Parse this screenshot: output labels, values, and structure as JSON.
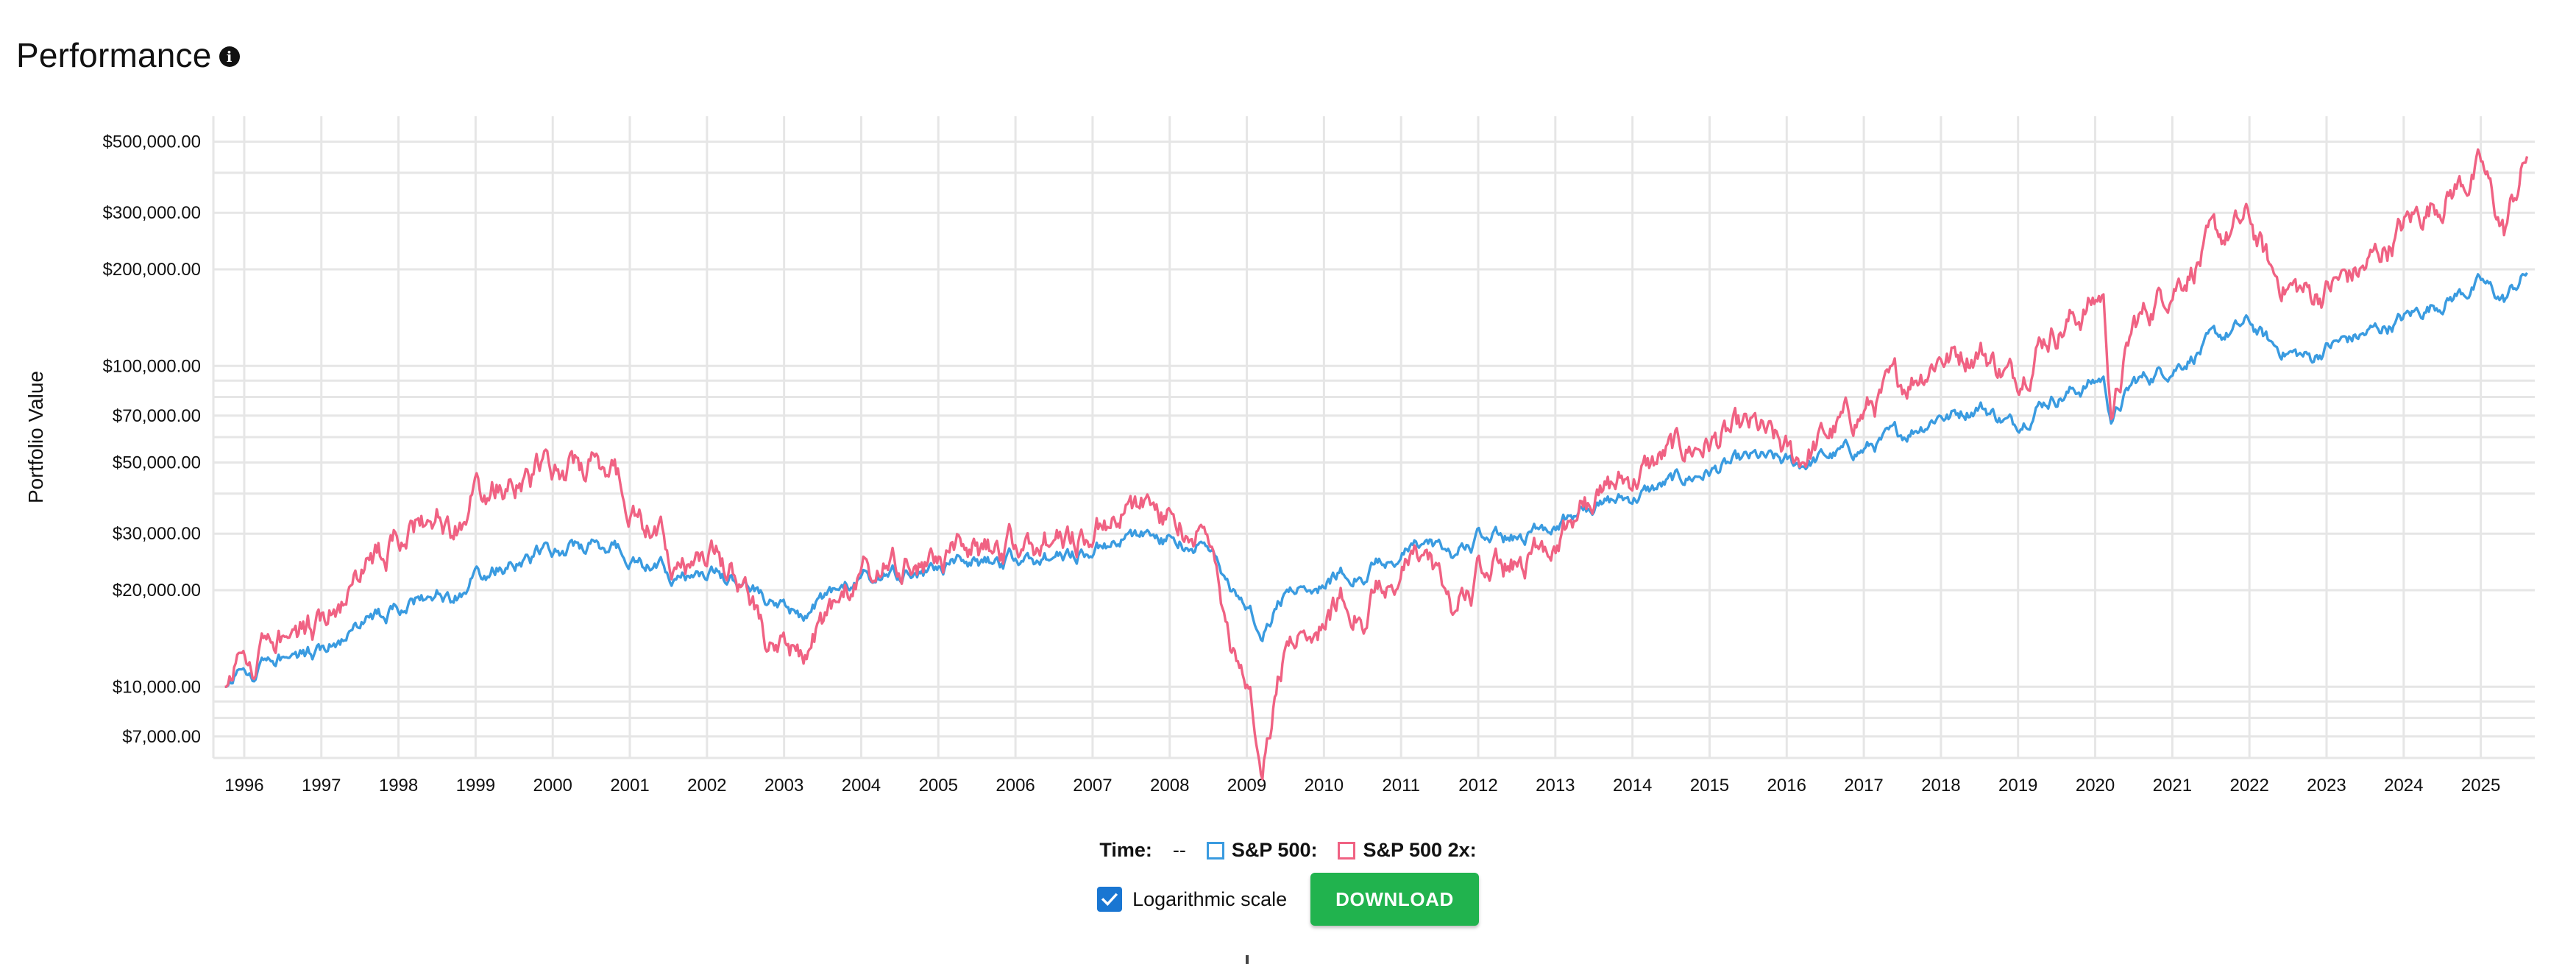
{
  "header": {
    "title": "Performance",
    "info_icon": "info-circle-icon"
  },
  "legend": {
    "time_label": "Time:",
    "time_value": "--",
    "items": [
      {
        "label": "S&P 500:",
        "color": "#3a9be0"
      },
      {
        "label": "S&P 500 2x:",
        "color": "#f06283"
      }
    ]
  },
  "controls": {
    "log_scale_label": "Logarithmic scale",
    "log_scale_checked": true,
    "download_label": "DOWNLOAD",
    "download_color": "#21b34e"
  },
  "chart_data": {
    "type": "line",
    "title": "",
    "xlabel": "",
    "ylabel": "Portfolio Value",
    "y_scale": "log",
    "ylim": [
      6000,
      600000
    ],
    "xlim": [
      1995.6,
      2025.7
    ],
    "grid": true,
    "legend": "bottom-center",
    "y_ticks": [
      {
        "value": 7000,
        "label": "$7,000.00"
      },
      {
        "value": 10000,
        "label": "$10,000.00"
      },
      {
        "value": 20000,
        "label": "$20,000.00"
      },
      {
        "value": 30000,
        "label": "$30,000.00"
      },
      {
        "value": 50000,
        "label": "$50,000.00"
      },
      {
        "value": 70000,
        "label": "$70,000.00"
      },
      {
        "value": 100000,
        "label": "$100,000.00"
      },
      {
        "value": 200000,
        "label": "$200,000.00"
      },
      {
        "value": 300000,
        "label": "$300,000.00"
      },
      {
        "value": 500000,
        "label": "$500,000.00"
      }
    ],
    "y_minor_ticks": [
      8000,
      9000,
      40000,
      60000,
      80000,
      90000,
      400000
    ],
    "x_ticks": [
      "1996",
      "1997",
      "1998",
      "1999",
      "2000",
      "2001",
      "2002",
      "2003",
      "2004",
      "2005",
      "2006",
      "2007",
      "2008",
      "2009",
      "2010",
      "2011",
      "2012",
      "2013",
      "2014",
      "2015",
      "2016",
      "2017",
      "2018",
      "2019",
      "2020",
      "2021",
      "2022",
      "2023",
      "2024",
      "2025"
    ],
    "x_tick_values": [
      1996,
      1997,
      1998,
      1999,
      2000,
      2001,
      2002,
      2003,
      2004,
      2005,
      2006,
      2007,
      2008,
      2009,
      2010,
      2011,
      2012,
      2013,
      2014,
      2015,
      2016,
      2017,
      2018,
      2019,
      2020,
      2021,
      2022,
      2023,
      2024,
      2025
    ],
    "series": [
      {
        "name": "S&P 500",
        "color": "#3a9be0",
        "x": [
          1995.75,
          1996.0,
          1996.5,
          1997.0,
          1997.5,
          1997.8,
          1998.0,
          1998.5,
          1998.7,
          1999.0,
          1999.5,
          2000.0,
          2000.4,
          2000.7,
          2001.0,
          2001.3,
          2001.7,
          2002.0,
          2002.5,
          2002.8,
          2003.2,
          2003.5,
          2004.0,
          2004.5,
          2005.0,
          2005.5,
          2006.0,
          2006.5,
          2007.0,
          2007.5,
          2007.8,
          2008.0,
          2008.5,
          2008.8,
          2009.0,
          2009.2,
          2009.5,
          2010.0,
          2010.3,
          2010.5,
          2011.0,
          2011.3,
          2011.7,
          2012.0,
          2012.5,
          2013.0,
          2013.5,
          2014.0,
          2014.5,
          2015.0,
          2015.6,
          2016.1,
          2016.5,
          2017.0,
          2017.5,
          2018.0,
          2018.1,
          2018.5,
          2018.95,
          2019.3,
          2019.8,
          2020.1,
          2020.22,
          2020.5,
          2021.0,
          2021.5,
          2022.0,
          2022.3,
          2022.8,
          2023.0,
          2023.5,
          2024.0,
          2024.5,
          2025.0,
          2025.3,
          2025.6
        ],
        "y": [
          10000,
          11000,
          12000,
          13000,
          15500,
          16500,
          17500,
          19500,
          18000,
          22000,
          24500,
          26500,
          27000,
          27500,
          26000,
          23500,
          22000,
          22500,
          21500,
          17500,
          16500,
          19000,
          21500,
          22000,
          23500,
          24000,
          25000,
          25500,
          27000,
          29500,
          30000,
          28500,
          27500,
          20000,
          17500,
          15500,
          19500,
          21500,
          23000,
          22500,
          26000,
          27500,
          26000,
          29000,
          29000,
          33000,
          36000,
          39000,
          43000,
          47000,
          51000,
          49000,
          52000,
          55000,
          61000,
          72000,
          70000,
          76000,
          65000,
          78000,
          85000,
          92000,
          68000,
          88000,
          100000,
          118000,
          135000,
          115000,
          105000,
          115000,
          125000,
          140000,
          160000,
          180000,
          160000,
          195000
        ]
      },
      {
        "name": "S&P 500 2x",
        "color": "#f06283",
        "x": [
          1995.75,
          1996.0,
          1996.5,
          1997.0,
          1997.5,
          1997.8,
          1998.0,
          1998.5,
          1998.7,
          1999.0,
          1999.5,
          2000.0,
          2000.4,
          2000.7,
          2001.0,
          2001.3,
          2001.7,
          2002.0,
          2002.5,
          2002.8,
          2003.2,
          2003.5,
          2004.0,
          2004.5,
          2005.0,
          2005.5,
          2006.0,
          2006.5,
          2007.0,
          2007.5,
          2007.8,
          2008.0,
          2008.5,
          2008.8,
          2009.0,
          2009.2,
          2009.5,
          2010.0,
          2010.3,
          2010.5,
          2011.0,
          2011.3,
          2011.7,
          2012.0,
          2012.5,
          2013.0,
          2013.5,
          2014.0,
          2014.5,
          2015.0,
          2015.6,
          2016.1,
          2016.5,
          2017.0,
          2017.5,
          2018.0,
          2018.1,
          2018.5,
          2018.95,
          2019.3,
          2019.8,
          2020.1,
          2020.22,
          2020.5,
          2021.0,
          2021.5,
          2022.0,
          2022.3,
          2022.8,
          2023.0,
          2023.5,
          2024.0,
          2024.5,
          2025.0,
          2025.3,
          2025.6
        ],
        "y": [
          10000,
          12000,
          13500,
          16000,
          22000,
          25000,
          29000,
          34000,
          28000,
          40000,
          44000,
          48000,
          47000,
          50000,
          39000,
          30000,
          23500,
          26000,
          22000,
          12000,
          12500,
          16000,
          22000,
          23000,
          25000,
          26000,
          27500,
          29000,
          31000,
          36000,
          38000,
          33000,
          30000,
          13000,
          10000,
          6400,
          13000,
          17000,
          19500,
          17000,
          23500,
          25000,
          17500,
          22000,
          24000,
          30000,
          38000,
          45000,
          53000,
          58000,
          62000,
          50000,
          60000,
          72000,
          88000,
          112000,
          108000,
          115000,
          90000,
          125000,
          145000,
          168000,
          70000,
          130000,
          185000,
          235000,
          280000,
          190000,
          165000,
          175000,
          200000,
          270000,
          340000,
          410000,
          260000,
          450000
        ]
      }
    ]
  }
}
